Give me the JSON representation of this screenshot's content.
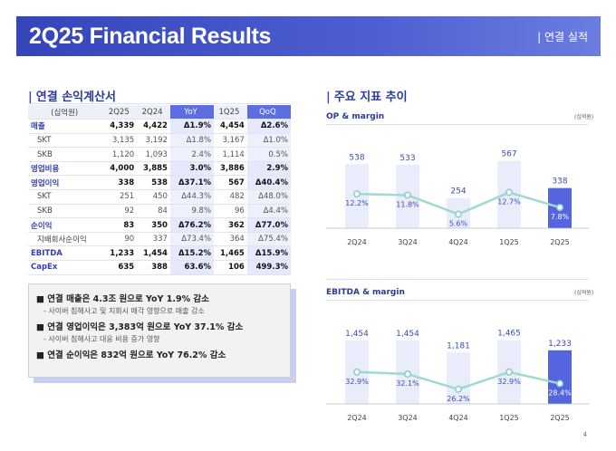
{
  "header": {
    "title": "2Q25 Financial Results",
    "section": "| 연결 실적"
  },
  "left_title": "연결 손익계산서",
  "right_title": "주요 지표 추이",
  "table": {
    "headers": [
      "(십억원)",
      "2Q25",
      "2Q24",
      "YoY",
      "1Q25",
      "QoQ"
    ],
    "rows": [
      {
        "type": "main",
        "cells": [
          "매출",
          "4,339",
          "4,422",
          "Δ1.9%",
          "4,454",
          "Δ2.6%"
        ]
      },
      {
        "type": "sub",
        "cells": [
          "SKT",
          "3,135",
          "3,192",
          "Δ1.8%",
          "3,167",
          "Δ1.0%"
        ]
      },
      {
        "type": "sub",
        "cells": [
          "SKB",
          "1,120",
          "1,093",
          "2.4%",
          "1,114",
          "0.5%"
        ]
      },
      {
        "type": "main",
        "cells": [
          "영업비용",
          "4,000",
          "3,885",
          "3.0%",
          "3,886",
          "2.9%"
        ]
      },
      {
        "type": "main",
        "cells": [
          "영업이익",
          "338",
          "538",
          "Δ37.1%",
          "567",
          "Δ40.4%"
        ]
      },
      {
        "type": "sub",
        "cells": [
          "SKT",
          "251",
          "450",
          "Δ44.3%",
          "482",
          "Δ48.0%"
        ]
      },
      {
        "type": "sub",
        "cells": [
          "SKB",
          "92",
          "84",
          "9.8%",
          "96",
          "Δ4.4%"
        ]
      },
      {
        "type": "main",
        "cells": [
          "순이익",
          "83",
          "350",
          "Δ76.2%",
          "362",
          "Δ77.0%"
        ]
      },
      {
        "type": "sub",
        "cells": [
          "지배회사순이익",
          "90",
          "337",
          "Δ73.4%",
          "364",
          "Δ75.4%"
        ]
      },
      {
        "type": "main",
        "cells": [
          "EBITDA",
          "1,233",
          "1,454",
          "Δ15.2%",
          "1,465",
          "Δ15.9%"
        ]
      },
      {
        "type": "main",
        "cells": [
          "CapEx",
          "635",
          "388",
          "63.6%",
          "106",
          "499.3%"
        ]
      }
    ]
  },
  "summary": [
    {
      "main": "연결 매출은 4.3조 원으로 YoY 1.9% 감소",
      "sub": "- 사이버 침해사고 및 지회시 매각 영향으로 매출 감소"
    },
    {
      "main": "연결 영업이익은 3,383억 원으로 YoY 37.1% 감소",
      "sub": "- 사이버 침해사고 대응 비용 증가 영향"
    },
    {
      "main": "연결 순이익은 832억 원으로 YoY 76.2% 감소",
      "sub": ""
    }
  ],
  "page_number": "4",
  "chart_data": [
    {
      "type": "bar",
      "title": "OP & margin",
      "unit": "(십억원)",
      "categories": [
        "2Q24",
        "3Q24",
        "4Q24",
        "1Q25",
        "2Q25"
      ],
      "series": [
        {
          "values": [
            538,
            533,
            254,
            567,
            338
          ]
        },
        {
          "values": [
            12.2,
            11.8,
            5.6,
            12.7,
            7.8
          ]
        }
      ],
      "bar_labels": [
        "538",
        "533",
        "254",
        "567",
        "338"
      ],
      "line_labels": [
        "12.2%",
        "11.8%",
        "5.6%",
        "12.7%",
        "7.8%"
      ],
      "bar_color": "#e8ecfb",
      "highlight_color": "#5565e0",
      "line_color": "#9fd9d0"
    },
    {
      "type": "bar",
      "title": "EBITDA & margin",
      "unit": "(십억원)",
      "categories": [
        "2Q24",
        "3Q24",
        "4Q24",
        "1Q25",
        "2Q25"
      ],
      "series": [
        {
          "values": [
            1454,
            1454,
            1181,
            1465,
            1233
          ]
        },
        {
          "values": [
            32.9,
            32.1,
            26.2,
            32.9,
            28.4
          ]
        }
      ],
      "bar_labels": [
        "1,454",
        "1,454",
        "1,181",
        "1,465",
        "1,233"
      ],
      "line_labels": [
        "32.9%",
        "32.1%",
        "26.2%",
        "32.9%",
        "28.4%"
      ],
      "bar_color": "#e8ecfb",
      "highlight_color": "#5565e0",
      "line_color": "#9fd9d0"
    }
  ]
}
